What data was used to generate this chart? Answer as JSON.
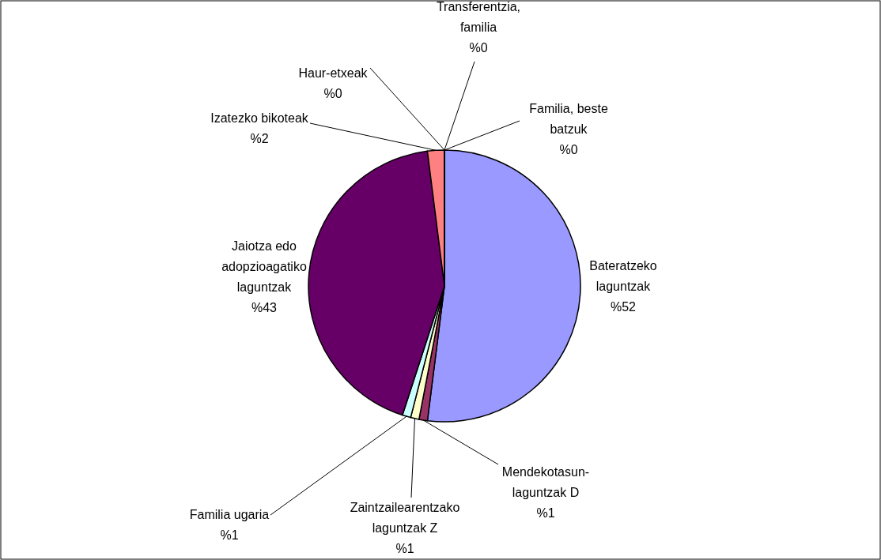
{
  "chart_data": {
    "type": "pie",
    "categories": [
      "Bateratzeko laguntzak",
      "Mendekotasun-laguntzak D",
      "Zaintzailearentzako laguntzak Z",
      "Familia ugaria",
      "Jaiotza edo adopzioagatiko laguntzak",
      "Izatezko bikoteak",
      "Haur-etxeak",
      "Transferentzia, familia",
      "Familia, beste batzuk"
    ],
    "values": [
      52,
      1,
      1,
      1,
      43,
      2,
      0,
      0,
      0
    ],
    "value_labels": [
      "%52",
      "%1",
      "%1",
      "%1",
      "%43",
      "%2",
      "%0",
      "%0",
      "%0"
    ],
    "colors": [
      "#9999ff",
      "#993366",
      "#ffffcc",
      "#ccffff",
      "#660066",
      "#ff8080",
      "#0066cc",
      "#ccccff",
      "#000080"
    ],
    "data_labels": true
  }
}
